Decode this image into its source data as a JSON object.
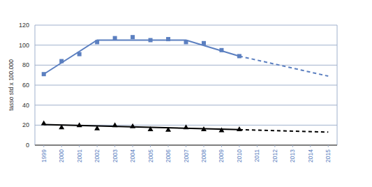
{
  "chart_data": {
    "type": "line",
    "y_label": "tasso std x 100.000",
    "xlim": [
      1998.5,
      2015.5
    ],
    "xticks": [
      1999,
      2000,
      2001,
      2002,
      2003,
      2004,
      2005,
      2006,
      2007,
      2008,
      2009,
      2010,
      2011,
      2012,
      2013,
      2014,
      2015
    ],
    "ylim": [
      0,
      120
    ],
    "yticks": [
      0,
      20,
      40,
      60,
      80,
      100,
      120
    ],
    "grid": true,
    "series": [
      {
        "type": "scatter",
        "marker": "square",
        "color": "#5b7fc0",
        "x": [
          1999,
          2000,
          2001,
          2002,
          2003,
          2004,
          2005,
          2006,
          2007,
          2008,
          2009,
          2010
        ],
        "values": [
          71,
          84,
          91,
          103,
          107,
          108,
          105,
          106,
          103,
          102,
          95,
          89
        ]
      },
      {
        "type": "line",
        "line_style": "solid",
        "color": "#5b7fc0",
        "x": [
          1999,
          2002,
          2007,
          2010
        ],
        "values": [
          71,
          105,
          105,
          89
        ]
      },
      {
        "type": "line",
        "line_style": "dashed",
        "color": "#5b7fc0",
        "x": [
          2010,
          2015
        ],
        "values": [
          89,
          69
        ]
      },
      {
        "type": "scatter",
        "marker": "triangle",
        "color": "#000000",
        "x": [
          1999,
          2000,
          2001,
          2002,
          2003,
          2004,
          2005,
          2006,
          2007,
          2008,
          2009,
          2010
        ],
        "values": [
          22,
          18,
          20,
          17,
          20,
          19,
          16,
          15.5,
          18,
          16,
          15,
          16
        ]
      },
      {
        "type": "line",
        "line_style": "solid",
        "color": "#000000",
        "x": [
          1999,
          2010
        ],
        "values": [
          20.5,
          15.5
        ]
      },
      {
        "type": "line",
        "line_style": "dashed",
        "color": "#000000",
        "x": [
          2010,
          2015
        ],
        "values": [
          15.5,
          13
        ]
      }
    ]
  }
}
